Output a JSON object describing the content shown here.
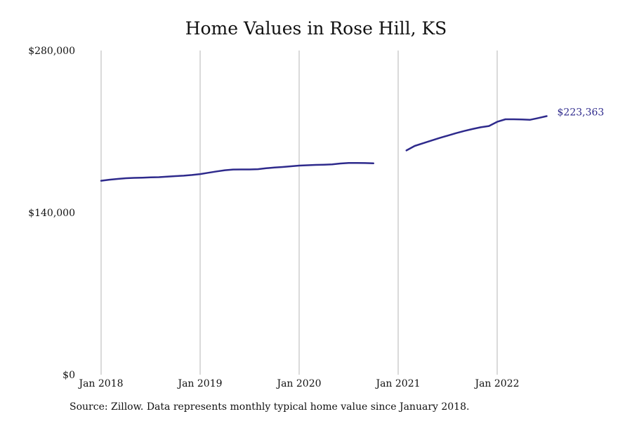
{
  "chart_data": {
    "type": "line",
    "title": "Home Values in Rose Hill, KS",
    "xlabel": "",
    "ylabel": "",
    "ylim": [
      0,
      280000
    ],
    "xlim": [
      "2018-01",
      "2022-12"
    ],
    "y_ticks": [
      {
        "value": 0,
        "label": "$0"
      },
      {
        "value": 140000,
        "label": "$140,000"
      },
      {
        "value": 280000,
        "label": "$280,000"
      }
    ],
    "x_ticks": [
      {
        "value": "2018-01",
        "label": "Jan 2018"
      },
      {
        "value": "2019-01",
        "label": "Jan 2019"
      },
      {
        "value": "2020-01",
        "label": "Jan 2020"
      },
      {
        "value": "2021-01",
        "label": "Jan 2021"
      },
      {
        "value": "2022-01",
        "label": "Jan 2022"
      }
    ],
    "grid": {
      "vertical": true,
      "horizontal": false
    },
    "color": "#2e2a8c",
    "end_label": "$223,363",
    "series": [
      {
        "segments": [
          {
            "x": [
              "2018-01",
              "2018-02",
              "2018-03",
              "2018-04",
              "2018-05",
              "2018-06",
              "2018-07",
              "2018-08",
              "2018-09",
              "2018-10",
              "2018-11",
              "2018-12",
              "2019-01",
              "2019-02",
              "2019-03",
              "2019-04",
              "2019-05",
              "2019-06",
              "2019-07",
              "2019-08",
              "2019-09",
              "2019-10",
              "2019-11",
              "2019-12",
              "2020-01",
              "2020-02",
              "2020-03",
              "2020-04",
              "2020-05",
              "2020-06",
              "2020-07",
              "2020-08",
              "2020-09",
              "2020-10"
            ],
            "y": [
              167500,
              168400,
              169100,
              169700,
              170000,
              170200,
              170400,
              170600,
              171100,
              171500,
              171900,
              172500,
              173300,
              174400,
              175600,
              176600,
              177200,
              177300,
              177300,
              177500,
              178300,
              178900,
              179400,
              180000,
              180600,
              180900,
              181200,
              181400,
              181700,
              182400,
              182900,
              182900,
              182800,
              182600
            ]
          },
          {
            "x": [
              "2021-02",
              "2021-03",
              "2021-04",
              "2021-05",
              "2021-06",
              "2021-07",
              "2021-08",
              "2021-09",
              "2021-10",
              "2021-11",
              "2021-12",
              "2022-01",
              "2022-02",
              "2022-03",
              "2022-04",
              "2022-05",
              "2022-06",
              "2022-07"
            ],
            "y": [
              193700,
              197600,
              199900,
              202200,
              204400,
              206500,
              208600,
              210500,
              212200,
              213700,
              214800,
              218400,
              220600,
              220600,
              220400,
              220200,
              221700,
              223363
            ]
          }
        ]
      }
    ]
  },
  "footer": {
    "source": "Source: Zillow. Data represents monthly typical home value since January 2018."
  }
}
